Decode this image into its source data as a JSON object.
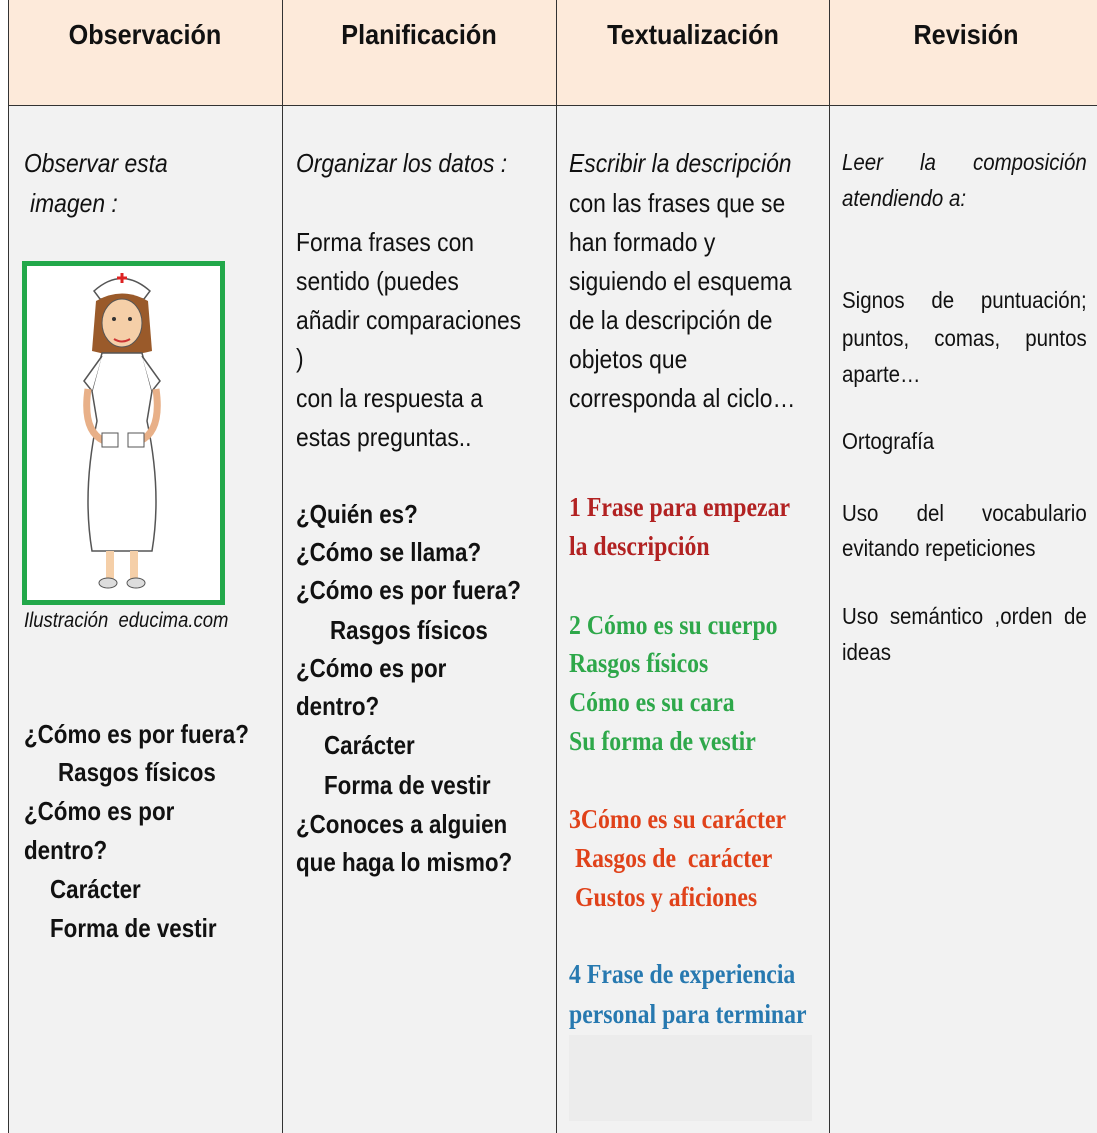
{
  "columns": [
    {
      "heading": "Observación",
      "intro": [
        "Observar esta",
        "imagen :"
      ],
      "caption": "Ilustración  educima.com",
      "points": [
        "¿Cómo es por fuera?",
        "Rasgos físicos",
        "¿Cómo es por",
        "dentro?",
        "Carácter",
        "Forma de vestir"
      ]
    },
    {
      "heading": "Planificación",
      "intro": [
        "Organizar los datos :"
      ],
      "body": [
        "Forma frases con",
        "sentido (puedes",
        "añadir comparaciones",
        ")",
        "con la respuesta a",
        "estas preguntas.."
      ],
      "questions": [
        "¿Quién es?",
        "¿Cómo se llama?",
        "¿Cómo es por fuera?",
        "Rasgos físicos",
        "¿Cómo es por",
        "dentro?",
        "Carácter",
        "Forma de vestir",
        "¿Conoces a alguien",
        "que haga lo mismo?"
      ]
    },
    {
      "heading": "Textualización",
      "intro": [
        "Escribir la descripción"
      ],
      "body": [
        "con las frases que se",
        "han formado y",
        "siguiendo el esquema",
        "de la descripción de",
        "objetos que",
        "corresponda al ciclo…"
      ],
      "steps": [
        [
          "1 Frase para empezar",
          "la descripción"
        ],
        [
          "2 Cómo es su cuerpo",
          "Rasgos físicos",
          "Cómo es su cara",
          "Su forma de vestir"
        ],
        [
          "3Cómo es su carácter",
          "Rasgos de  carácter",
          "Gustos y aficiones"
        ],
        [
          "4 Frase de experiencia",
          "personal para terminar"
        ]
      ]
    },
    {
      "heading": "Revisión",
      "intro": [
        "Leer la composición",
        "atendiendo a:"
      ],
      "items": [
        [
          "Signos de puntuación;",
          "puntos, comas, puntos",
          "aparte…"
        ],
        [
          "Ortografía"
        ],
        [
          "Uso del vocabulario",
          "evitando repeticiones"
        ],
        [
          "Uso semántico ,orden de",
          "ideas"
        ]
      ]
    }
  ]
}
